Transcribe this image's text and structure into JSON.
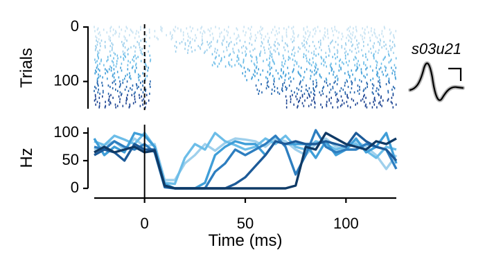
{
  "chart_data": [
    {
      "type": "raster",
      "ylabel": "Trials",
      "ylim": [
        0,
        150
      ],
      "yticks": [
        0,
        100
      ],
      "ytick_labels": [
        "0",
        "100"
      ],
      "y_inverted": true,
      "xlim": [
        -25,
        125
      ],
      "stimulus_time": 0,
      "gap_after_stimulus_by_trial_group": [
        {
          "trial_start": 0,
          "trial_end": 25,
          "gap_end": 5
        },
        {
          "trial_start": 25,
          "trial_end": 50,
          "gap_end": 15
        },
        {
          "trial_start": 50,
          "trial_end": 75,
          "gap_end": 32
        },
        {
          "trial_start": 75,
          "trial_end": 100,
          "gap_end": 48
        },
        {
          "trial_start": 100,
          "trial_end": 125,
          "gap_end": 55
        },
        {
          "trial_start": 125,
          "trial_end": 150,
          "gap_end": 70
        }
      ],
      "colors": [
        "#c6e2f2",
        "#9fd0ec",
        "#6cbde8",
        "#3f9ed8",
        "#2565ad",
        "#173f8f"
      ]
    },
    {
      "type": "line",
      "ylabel": "Hz",
      "xlabel": "Time (ms)",
      "ylim": [
        0,
        115
      ],
      "yticks": [
        0,
        50,
        100
      ],
      "ytick_labels": [
        "0",
        "50",
        "100"
      ],
      "xlim": [
        -25,
        125
      ],
      "xticks": [
        0,
        50,
        100
      ],
      "xtick_labels": [
        "0",
        "50",
        "100"
      ],
      "x": [
        -25,
        -20,
        -15,
        -10,
        -5,
        0,
        5,
        10,
        15,
        20,
        25,
        30,
        35,
        40,
        45,
        50,
        55,
        60,
        65,
        70,
        75,
        80,
        85,
        90,
        95,
        100,
        105,
        110,
        115,
        120,
        125
      ],
      "series": [
        {
          "color": "#9fd0ec",
          "values": [
            70,
            78,
            85,
            70,
            90,
            75,
            80,
            15,
            15,
            45,
            60,
            80,
            68,
            82,
            90,
            88,
            85,
            75,
            90,
            85,
            70,
            60,
            80,
            90,
            75,
            70,
            85,
            75,
            60,
            35,
            60
          ]
        },
        {
          "color": "#6cbde8",
          "values": [
            85,
            78,
            95,
            88,
            80,
            100,
            75,
            10,
            8,
            55,
            80,
            70,
            100,
            85,
            78,
            70,
            75,
            90,
            80,
            95,
            75,
            70,
            85,
            80,
            70,
            75,
            80,
            68,
            55,
            75,
            70
          ]
        },
        {
          "color": "#3f9ed8",
          "values": [
            90,
            60,
            75,
            65,
            100,
            95,
            75,
            8,
            0,
            0,
            0,
            10,
            60,
            75,
            85,
            80,
            80,
            60,
            85,
            80,
            80,
            80,
            55,
            85,
            60,
            70,
            90,
            65,
            75,
            100,
            45
          ]
        },
        {
          "color": "#2d7ec0",
          "values": [
            75,
            70,
            85,
            75,
            70,
            80,
            65,
            2,
            0,
            0,
            0,
            0,
            30,
            45,
            70,
            60,
            70,
            80,
            95,
            75,
            25,
            60,
            105,
            75,
            65,
            70,
            70,
            80,
            75,
            70,
            35
          ]
        },
        {
          "color": "#1c5a98",
          "values": [
            60,
            70,
            65,
            50,
            80,
            70,
            70,
            3,
            0,
            0,
            0,
            0,
            0,
            0,
            8,
            20,
            40,
            60,
            85,
            80,
            85,
            80,
            80,
            85,
            80,
            75,
            100,
            85,
            75,
            70,
            50
          ]
        },
        {
          "color": "#0f3a66",
          "values": [
            65,
            75,
            65,
            70,
            75,
            65,
            68,
            5,
            0,
            0,
            0,
            0,
            0,
            0,
            0,
            0,
            0,
            0,
            0,
            0,
            5,
            75,
            70,
            100,
            90,
            80,
            75,
            70,
            85,
            80,
            90
          ]
        }
      ]
    }
  ],
  "unit_label": "s03u21"
}
